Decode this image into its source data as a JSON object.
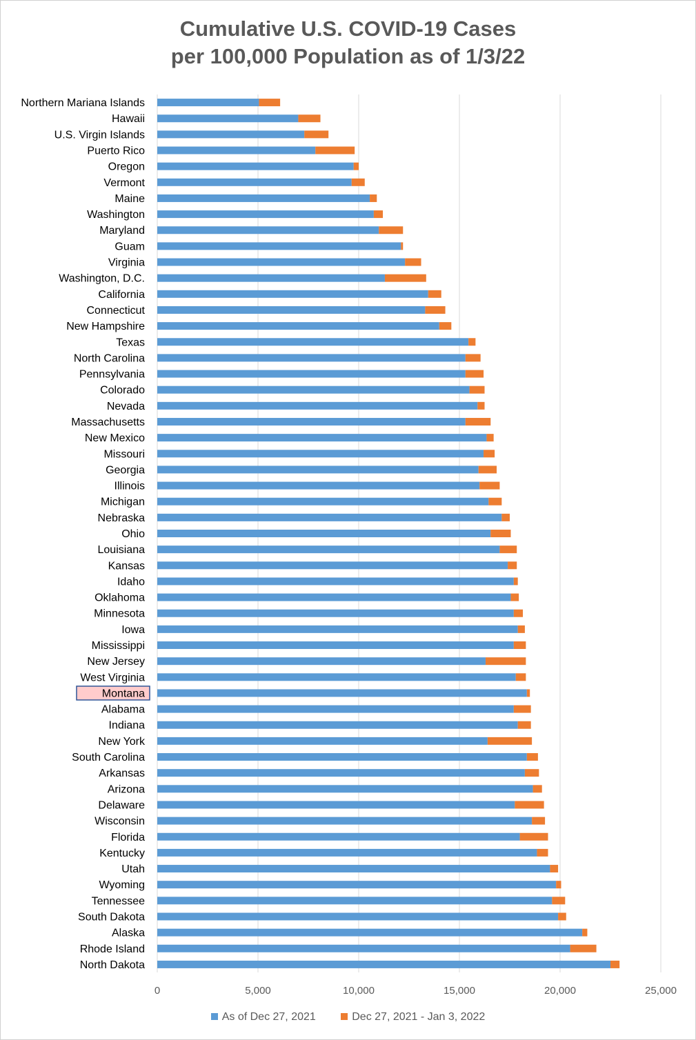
{
  "chart_data": {
    "type": "bar",
    "orientation": "horizontal",
    "stacked": true,
    "title_line1": "Cumulative U.S. COVID-19 Cases",
    "title_line2": "per 100,000 Population as of 1/3/22",
    "categories": [
      "Northern Mariana Islands",
      "Hawaii",
      "U.S. Virgin Islands",
      "Puerto Rico",
      "Oregon",
      "Vermont",
      "Maine",
      "Washington",
      "Maryland",
      "Guam",
      "Virginia",
      "Washington, D.C.",
      "California",
      "Connecticut",
      "New Hampshire",
      "Texas",
      "North Carolina",
      "Pennsylvania",
      "Colorado",
      "Nevada",
      "Massachusetts",
      "New Mexico",
      "Missouri",
      "Georgia",
      "Illinois",
      "Michigan",
      "Nebraska",
      "Ohio",
      "Louisiana",
      "Kansas",
      "Idaho",
      "Oklahoma",
      "Minnesota",
      "Iowa",
      "Mississippi",
      "New Jersey",
      "West Virginia",
      "Montana",
      "Alabama",
      "Indiana",
      "New York",
      "South Carolina",
      "Arkansas",
      "Arizona",
      "Delaware",
      "Wisconsin",
      "Florida",
      "Kentucky",
      "Utah",
      "Wyoming",
      "Tennessee",
      "South Dakota",
      "Alaska",
      "Rhode Island",
      "North Dakota"
    ],
    "series": [
      {
        "name": "As of Dec 27, 2021",
        "color": "#5B9BD5",
        "values": [
          5050,
          7000,
          7300,
          7850,
          9750,
          9650,
          10550,
          10750,
          11000,
          12100,
          12300,
          11300,
          13450,
          13300,
          14000,
          15450,
          15300,
          15300,
          15500,
          15900,
          15300,
          16350,
          16200,
          15950,
          16000,
          16450,
          17100,
          16550,
          17000,
          17400,
          17700,
          17550,
          17700,
          17900,
          17700,
          16300,
          17800,
          18350,
          17700,
          17900,
          16400,
          18350,
          18250,
          18650,
          17750,
          18600,
          18000,
          18850,
          19500,
          19800,
          19600,
          19900,
          21100,
          20500,
          22500
        ]
      },
      {
        "name": "Dec 27, 2021 - Jan 3, 2022",
        "color": "#ED7D31",
        "values": [
          1050,
          1100,
          1200,
          1950,
          250,
          650,
          350,
          450,
          1200,
          100,
          800,
          2050,
          650,
          1000,
          600,
          350,
          750,
          900,
          750,
          350,
          1250,
          350,
          550,
          900,
          1000,
          650,
          400,
          1000,
          850,
          450,
          200,
          400,
          450,
          350,
          600,
          2000,
          500,
          150,
          850,
          650,
          2200,
          550,
          700,
          450,
          1450,
          650,
          1400,
          550,
          400,
          250,
          650,
          400,
          250,
          1300,
          450
        ]
      }
    ],
    "xlim": [
      0,
      25000
    ],
    "xticks": [
      0,
      5000,
      10000,
      15000,
      20000,
      25000
    ],
    "xtick_labels": [
      "0",
      "5,000",
      "10,000",
      "15,000",
      "20,000",
      "25,000"
    ],
    "grid": "vertical",
    "legend_position": "bottom",
    "highlighted_category": "Montana",
    "highlight_fill": "#FFCCCC",
    "highlight_border": "#2F5597"
  }
}
